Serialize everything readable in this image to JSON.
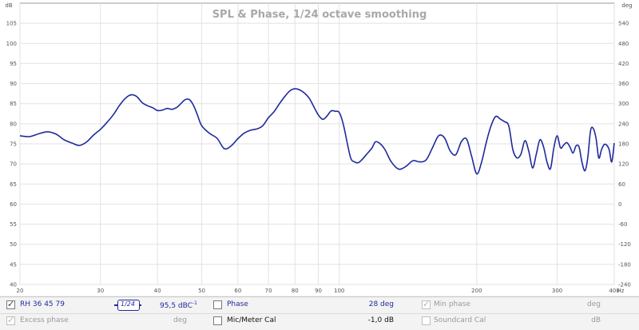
{
  "chart_data": {
    "type": "line",
    "title": "SPL & Phase, 1/24 octave smoothing",
    "x_unit": "Hz",
    "xscale": "log",
    "xlim": [
      20,
      400
    ],
    "x_ticks": [
      "20",
      "30",
      "40",
      "50",
      "60",
      "70",
      "80",
      "90",
      "100",
      "200",
      "300",
      "400"
    ],
    "y_unit_left": "dB",
    "ylim_left": [
      40,
      110
    ],
    "y_ticks_left": [
      "105",
      "100",
      "95",
      "90",
      "85",
      "80",
      "75",
      "70",
      "65",
      "60",
      "55",
      "50",
      "45",
      "40"
    ],
    "y_unit_right": "deg",
    "ylim_right": [
      -240,
      600
    ],
    "y_ticks_right": [
      "540",
      "480",
      "420",
      "360",
      "300",
      "240",
      "180",
      "120",
      "60",
      "0",
      "-60",
      "-120",
      "-180",
      "-240"
    ],
    "grid": true,
    "series": [
      {
        "name": "RH 36 45 79",
        "color": "#1f2a9c",
        "x": [
          20,
          21,
          22,
          23,
          24,
          25,
          26,
          27,
          28,
          29,
          30,
          31,
          32,
          33,
          34,
          35,
          36,
          37,
          38,
          39,
          40,
          41,
          42,
          43,
          44,
          45,
          46,
          47,
          48,
          49,
          50,
          52,
          54,
          56,
          58,
          60,
          62,
          64,
          66,
          68,
          70,
          72,
          74,
          76,
          78,
          80,
          82,
          84,
          86,
          88,
          90,
          92,
          94,
          96,
          98,
          100,
          102,
          104,
          106,
          108,
          110,
          112,
          115,
          118,
          120,
          123,
          126,
          130,
          135,
          140,
          145,
          150,
          155,
          160,
          165,
          170,
          175,
          180,
          185,
          190,
          195,
          200,
          205,
          210,
          215,
          220,
          225,
          230,
          235,
          240,
          245,
          250,
          255,
          260,
          265,
          270,
          275,
          280,
          285,
          290,
          295,
          300,
          305,
          310,
          315,
          320,
          325,
          330,
          335,
          340,
          345,
          350,
          355,
          360,
          365,
          370,
          375,
          380,
          385,
          390,
          395,
          400
        ],
        "values": [
          77,
          76.8,
          77.5,
          78,
          77.4,
          76,
          75.2,
          74.6,
          75.5,
          77.2,
          78.6,
          80.3,
          82.2,
          84.5,
          86.3,
          87.2,
          86.8,
          85.3,
          84.5,
          84,
          83.3,
          83.4,
          83.8,
          83.6,
          84,
          85,
          86,
          86,
          84.5,
          82,
          79.5,
          77.6,
          76.4,
          73.8,
          74.5,
          76.3,
          77.7,
          78.4,
          78.7,
          79.5,
          81.5,
          83,
          85,
          86.8,
          88.2,
          88.7,
          88.4,
          87.6,
          86.3,
          84.2,
          82.2,
          81.1,
          81.9,
          83.2,
          83.1,
          82.8,
          80,
          75.5,
          71.4,
          70.5,
          70.3,
          71,
          72.5,
          74,
          75.5,
          75,
          73.5,
          70.5,
          68.7,
          69.4,
          70.8,
          70.5,
          71,
          74,
          77,
          76.5,
          73.2,
          72.3,
          75.5,
          76.2,
          71.8,
          67.5,
          70.5,
          75.5,
          79.5,
          81.8,
          81.2,
          80.5,
          79.5,
          73.5,
          71.5,
          72.5,
          75.8,
          73.2,
          69,
          72.4,
          76,
          74.3,
          70.5,
          68.8,
          74,
          77,
          74,
          74.7,
          75.3,
          74.2,
          72.7,
          74.5,
          74.2,
          70.4,
          68.3,
          71.5,
          78.3,
          78.8,
          76.3,
          71.5,
          73.5,
          74.8,
          74.7,
          73.5,
          70.5,
          75.2
        ]
      }
    ]
  },
  "legend": {
    "row1": {
      "trace_label": "RH 36 45 79",
      "smoothing_label": "1/24",
      "spl_value": "95,5 dBC",
      "spl_sup": "-1",
      "phase_label": "Phase",
      "phase_value": "28 deg",
      "min_phase_label": "Min phase",
      "min_phase_unit": "deg"
    },
    "row2": {
      "excess_phase_label": "Excess phase",
      "excess_phase_unit": "deg",
      "mic_cal_label": "Mic/Meter Cal",
      "mic_cal_value": "-1,0 dB",
      "soundcard_cal_label": "Soundcard Cal",
      "soundcard_cal_unit": "dB"
    },
    "colors": {
      "trace": "#1f2a9c",
      "grid": "#e2e2e2",
      "title": "#a8a8a8"
    }
  }
}
